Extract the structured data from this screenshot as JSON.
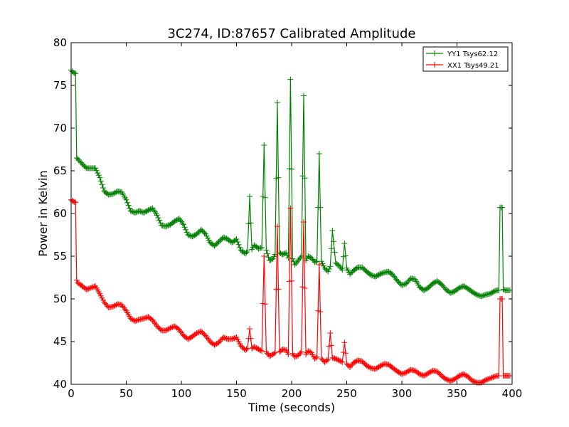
{
  "chart_data": {
    "type": "line",
    "title": "3C274, ID:87657 Calibrated Amplitude",
    "xlabel": "Time (seconds)",
    "ylabel": "Power in Kelvin",
    "xlim": [
      0,
      400
    ],
    "ylim": [
      40,
      80
    ],
    "xticks": [
      0,
      50,
      100,
      150,
      200,
      250,
      300,
      350,
      400
    ],
    "yticks": [
      40,
      45,
      50,
      55,
      60,
      65,
      70,
      75,
      80
    ],
    "grid": false,
    "legend_position": "top-right",
    "series": [
      {
        "name": "YY1 Tsys62.12",
        "color": "#008000",
        "marker": "plus",
        "x": [
          0,
          2,
          4,
          5,
          6,
          10,
          14,
          18,
          22,
          26,
          30,
          34,
          38,
          42,
          46,
          50,
          54,
          58,
          62,
          66,
          70,
          74,
          78,
          82,
          86,
          90,
          94,
          98,
          102,
          106,
          110,
          114,
          118,
          122,
          126,
          130,
          134,
          138,
          142,
          146,
          150,
          154,
          158,
          160,
          162,
          164,
          166,
          170,
          173,
          175,
          177,
          180,
          183,
          185,
          187,
          189,
          192,
          195,
          197,
          199,
          201,
          203,
          206,
          209,
          211,
          213,
          215,
          218,
          221,
          223,
          225,
          227,
          230,
          233,
          235,
          237,
          240,
          243,
          246,
          248,
          250,
          253,
          256,
          260,
          264,
          268,
          272,
          276,
          280,
          284,
          288,
          292,
          296,
          300,
          304,
          308,
          312,
          316,
          320,
          324,
          328,
          332,
          336,
          340,
          344,
          348,
          352,
          356,
          360,
          364,
          368,
          372,
          376,
          380,
          384,
          386,
          388,
          389,
          391,
          392,
          394,
          396,
          398
        ],
        "y": [
          76.8,
          76.5,
          76.4,
          66.5,
          66.4,
          65.8,
          65.3,
          65.3,
          65.3,
          64.2,
          62.6,
          62.2,
          62.3,
          62.6,
          62.5,
          61.6,
          60.3,
          60.1,
          60.3,
          60.1,
          60.4,
          60.6,
          59.8,
          58.6,
          58.5,
          58.7,
          59.1,
          59.4,
          58.7,
          57.5,
          57.3,
          57.6,
          58.1,
          57.6,
          56.6,
          56.2,
          56.7,
          57.2,
          57.0,
          56.6,
          57.0,
          55.7,
          55.3,
          55.6,
          62.0,
          55.8,
          56.3,
          55.9,
          56.0,
          68.0,
          55.7,
          54.5,
          54.7,
          55.2,
          73.0,
          55.4,
          55.2,
          55.4,
          54.8,
          75.7,
          54.7,
          54.0,
          54.5,
          55.0,
          73.8,
          54.5,
          55.0,
          54.8,
          54.3,
          54.4,
          67.0,
          54.4,
          53.6,
          53.2,
          53.8,
          58.0,
          54.2,
          53.9,
          53.4,
          56.5,
          53.6,
          52.9,
          53.3,
          53.7,
          53.7,
          53.2,
          52.8,
          52.6,
          52.9,
          53.1,
          53.2,
          52.8,
          52.1,
          51.6,
          51.8,
          52.4,
          52.3,
          51.4,
          51.0,
          51.3,
          51.8,
          52.1,
          51.7,
          51.1,
          50.7,
          50.9,
          51.3,
          51.5,
          51.2,
          50.8,
          50.5,
          50.3,
          50.5,
          50.6,
          50.9,
          51.0,
          51.0,
          60.7,
          60.7,
          51.1,
          51.0,
          51.0,
          51.0
        ]
      },
      {
        "name": "XX1 Tsys49.21",
        "color": "#ff0000",
        "marker": "plus",
        "x": [
          0,
          2,
          4,
          5,
          6,
          10,
          14,
          18,
          22,
          26,
          30,
          34,
          38,
          42,
          46,
          50,
          54,
          58,
          62,
          66,
          70,
          74,
          78,
          82,
          86,
          90,
          94,
          98,
          102,
          106,
          110,
          114,
          118,
          122,
          126,
          130,
          134,
          138,
          142,
          146,
          150,
          154,
          158,
          160,
          162,
          164,
          166,
          170,
          173,
          175,
          177,
          180,
          183,
          185,
          187,
          189,
          192,
          195,
          197,
          199,
          201,
          203,
          206,
          209,
          211,
          213,
          215,
          218,
          221,
          223,
          225,
          227,
          230,
          233,
          235,
          237,
          240,
          243,
          246,
          248,
          250,
          253,
          256,
          260,
          264,
          268,
          272,
          276,
          280,
          284,
          288,
          292,
          296,
          300,
          304,
          308,
          312,
          316,
          320,
          324,
          328,
          332,
          336,
          340,
          344,
          348,
          352,
          356,
          360,
          364,
          368,
          372,
          376,
          380,
          384,
          386,
          388,
          389,
          391,
          392,
          394,
          396,
          398
        ],
        "y": [
          61.6,
          61.4,
          61.3,
          52.2,
          51.9,
          51.5,
          51.1,
          51.3,
          51.5,
          50.6,
          49.6,
          49.0,
          49.1,
          49.4,
          49.3,
          48.6,
          47.7,
          47.4,
          47.6,
          47.7,
          47.9,
          47.5,
          46.8,
          46.3,
          46.3,
          46.6,
          46.8,
          46.4,
          45.7,
          45.3,
          45.6,
          46.0,
          46.2,
          45.7,
          45.0,
          44.6,
          44.9,
          45.5,
          45.3,
          45.3,
          45.5,
          44.5,
          44.0,
          44.2,
          46.5,
          44.2,
          44.4,
          44.1,
          43.9,
          55.0,
          43.8,
          43.3,
          43.5,
          43.7,
          58.5,
          43.8,
          44.1,
          44.0,
          43.5,
          60.6,
          43.6,
          43.2,
          43.4,
          43.8,
          59.0,
          43.5,
          43.9,
          43.7,
          43.0,
          43.2,
          54.0,
          43.0,
          42.6,
          42.9,
          46.0,
          43.1,
          43.0,
          42.8,
          42.6,
          44.9,
          42.4,
          42.0,
          42.5,
          42.8,
          42.7,
          42.2,
          41.9,
          41.8,
          42.1,
          42.4,
          42.3,
          41.9,
          41.5,
          41.2,
          41.4,
          41.7,
          41.6,
          41.2,
          41.0,
          41.3,
          41.6,
          41.5,
          41.0,
          40.6,
          40.4,
          40.6,
          41.0,
          41.2,
          40.9,
          40.4,
          40.2,
          40.2,
          40.5,
          40.7,
          40.9,
          41.0,
          41.0,
          50.0,
          50.0,
          41.0,
          41.0,
          41.0,
          41.0
        ]
      }
    ]
  }
}
